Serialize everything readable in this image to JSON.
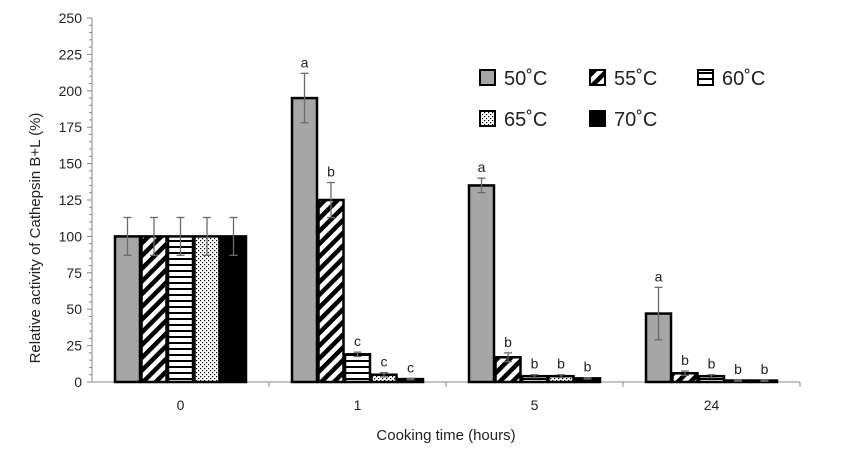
{
  "chart_data": {
    "type": "bar",
    "title": "",
    "xlabel": "Cooking time (hours)",
    "ylabel": "Relative activity of Cathepsin B+L (%)",
    "ylim": [
      0,
      250
    ],
    "yticks": [
      0,
      25,
      50,
      75,
      100,
      125,
      150,
      175,
      200,
      225,
      250
    ],
    "grid": false,
    "legend_position": "top-right",
    "categories": [
      "0",
      "1",
      "5",
      "24"
    ],
    "series": [
      {
        "name": "50˚C",
        "pattern": "solid-gray",
        "color": "#a6a6a6",
        "values": [
          100,
          195,
          135,
          47
        ],
        "errors": [
          13,
          17,
          5,
          18
        ],
        "labels": [
          "",
          "a",
          "a",
          "a"
        ]
      },
      {
        "name": "55˚C",
        "pattern": "diagonal-stripes",
        "color": "#000000",
        "values": [
          100,
          125,
          17,
          6
        ],
        "errors": [
          13,
          12,
          3,
          1.5
        ],
        "labels": [
          "",
          "b",
          "b",
          "b"
        ]
      },
      {
        "name": "60˚C",
        "pattern": "horizontal-stripes",
        "color": "#000000",
        "values": [
          100,
          19,
          4,
          4
        ],
        "errors": [
          13,
          1.5,
          1,
          1
        ],
        "labels": [
          "",
          "c",
          "b",
          "b"
        ]
      },
      {
        "name": "65˚C",
        "pattern": "dotted",
        "color": "#000000",
        "values": [
          100,
          5,
          4,
          1
        ],
        "errors": [
          13,
          1.5,
          1,
          0.5
        ],
        "labels": [
          "",
          "c",
          "b",
          "b"
        ]
      },
      {
        "name": "70˚C",
        "pattern": "solid-black",
        "color": "#000000",
        "values": [
          100,
          2,
          2.5,
          1
        ],
        "errors": [
          13,
          0.5,
          0.5,
          0.5
        ],
        "labels": [
          "",
          "c",
          "b",
          "b"
        ]
      }
    ]
  }
}
